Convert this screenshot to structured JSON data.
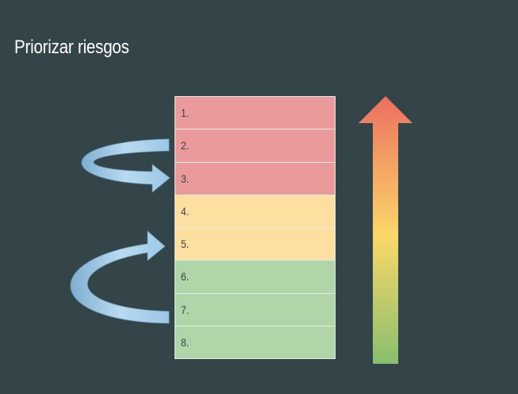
{
  "slide": {
    "title": "Priorizar riesgos"
  },
  "priority_list": {
    "items": [
      {
        "label": "1.",
        "level": "high"
      },
      {
        "label": "2.",
        "level": "high"
      },
      {
        "label": "3.",
        "level": "high"
      },
      {
        "label": "4.",
        "level": "mid"
      },
      {
        "label": "5.",
        "level": "mid"
      },
      {
        "label": "6.",
        "level": "low"
      },
      {
        "label": "7.",
        "level": "low"
      },
      {
        "label": "8.",
        "level": "low"
      }
    ]
  },
  "colors": {
    "background": "#34454a",
    "high": "#ea9a9a",
    "mid": "#fde09f",
    "low": "#afd5a9",
    "curved_arrow": "#9cc7e6",
    "scale_top": "#ec6f60",
    "scale_middle": "#fbd769",
    "scale_bottom": "#89bf6f"
  },
  "icons": {
    "reorder_arrow_up_to_down": "curved-arrow-right",
    "reorder_arrow_down_to_up": "curved-arrow-right",
    "priority_scale": "gradient-up-arrow"
  }
}
